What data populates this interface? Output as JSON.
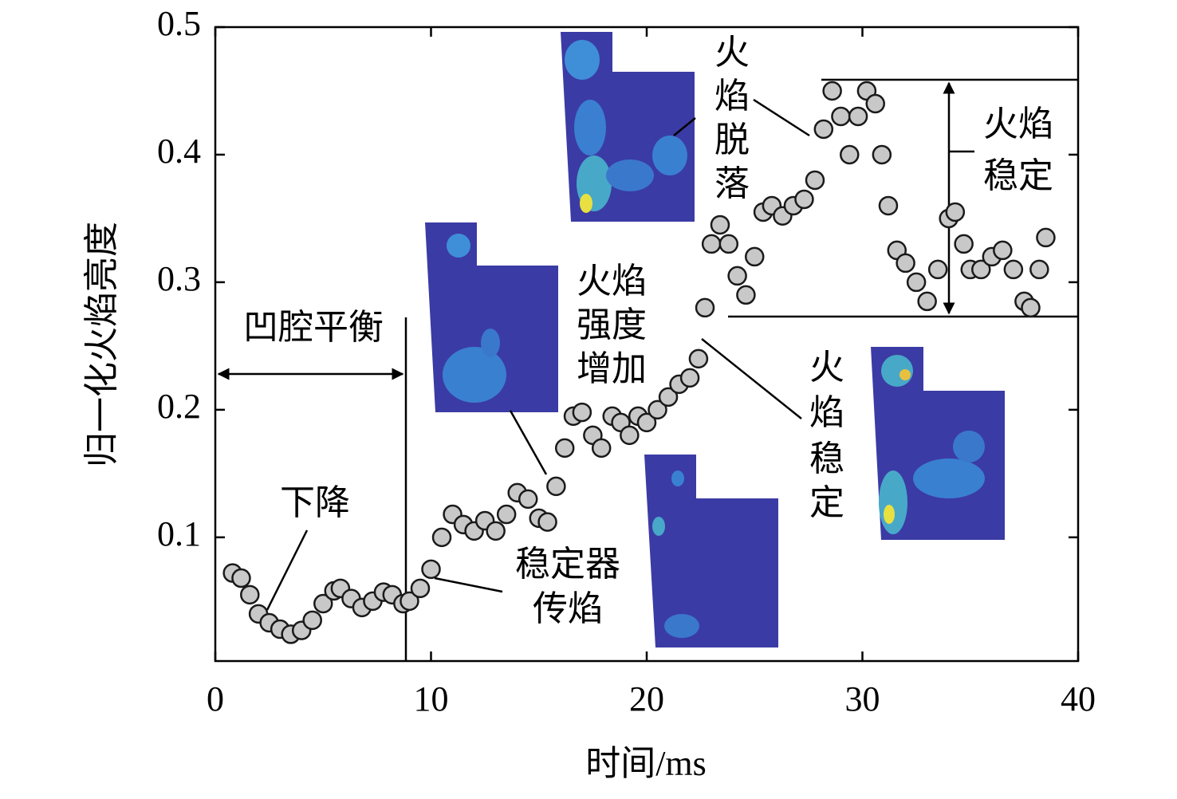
{
  "chart_data": {
    "type": "scatter",
    "xlabel": "时间/ms",
    "ylabel": "归一化火焰亮度",
    "xlim": [
      0,
      40
    ],
    "xticks": [
      0,
      10,
      20,
      30,
      40
    ],
    "ylim": [
      0.003,
      0.5
    ],
    "yticks": [
      0.1,
      0.2,
      0.3,
      0.4,
      0.5
    ],
    "color": "#c8c8c8",
    "x": [
      0.8,
      1.2,
      1.6,
      2.0,
      2.5,
      3.0,
      3.5,
      4.0,
      4.5,
      5.0,
      5.5,
      5.8,
      6.3,
      6.8,
      7.3,
      7.8,
      8.2,
      8.7,
      9.0,
      9.5,
      10.0,
      10.5,
      11.0,
      11.5,
      12.0,
      12.5,
      13.0,
      13.5,
      14.0,
      14.5,
      15.0,
      15.4,
      15.8,
      16.2,
      16.6,
      17.0,
      17.5,
      17.9,
      18.4,
      18.8,
      19.2,
      19.6,
      20.0,
      20.5,
      21.0,
      21.5,
      22.0,
      22.4,
      22.7,
      23.0,
      23.4,
      23.8,
      24.2,
      24.6,
      25.0,
      25.4,
      25.8,
      26.3,
      26.8,
      27.3,
      27.8,
      28.2,
      28.6,
      29.0,
      29.4,
      29.8,
      30.2,
      30.6,
      30.9,
      31.2,
      31.6,
      32.0,
      32.5,
      33.0,
      33.5,
      34.0,
      34.3,
      34.7,
      35.0,
      35.5,
      36.0,
      36.5,
      37.0,
      37.5,
      37.8,
      38.2,
      38.5
    ],
    "values": [
      0.072,
      0.068,
      0.055,
      0.04,
      0.033,
      0.028,
      0.024,
      0.027,
      0.035,
      0.048,
      0.058,
      0.06,
      0.052,
      0.045,
      0.05,
      0.057,
      0.055,
      0.048,
      0.05,
      0.06,
      0.075,
      0.1,
      0.118,
      0.11,
      0.105,
      0.113,
      0.105,
      0.118,
      0.135,
      0.13,
      0.115,
      0.112,
      0.14,
      0.17,
      0.195,
      0.198,
      0.18,
      0.17,
      0.195,
      0.19,
      0.18,
      0.195,
      0.19,
      0.2,
      0.21,
      0.22,
      0.225,
      0.24,
      0.28,
      0.33,
      0.345,
      0.33,
      0.305,
      0.29,
      0.32,
      0.355,
      0.36,
      0.352,
      0.36,
      0.365,
      0.38,
      0.42,
      0.45,
      0.43,
      0.4,
      0.43,
      0.45,
      0.44,
      0.4,
      0.36,
      0.325,
      0.315,
      0.3,
      0.285,
      0.31,
      0.35,
      0.355,
      0.33,
      0.31,
      0.31,
      0.32,
      0.325,
      0.31,
      0.285,
      0.28,
      0.31,
      0.335
    ],
    "annotations": [
      [
        "凹腔平衡"
      ],
      [
        "下降"
      ],
      [
        "稳定器",
        "传焰"
      ],
      [
        "火焰",
        "强度",
        "增加"
      ],
      [
        "火",
        "焰",
        "脱",
        "落"
      ],
      [
        "火焰",
        "稳定"
      ],
      [
        "火",
        "焰",
        "稳",
        "定"
      ]
    ]
  }
}
